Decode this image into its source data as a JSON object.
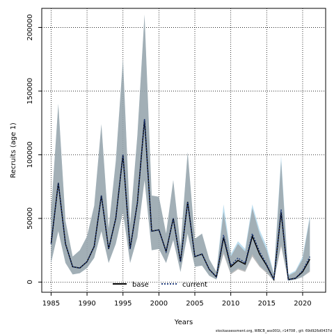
{
  "chart_data": {
    "type": "line",
    "xlabel": "Years",
    "ylabel": "Recruits (age 1)",
    "xlim": [
      1983.7,
      2023.2
    ],
    "ylim": [
      -8000,
      215000
    ],
    "x_ticks": [
      1985,
      1990,
      1995,
      2000,
      2005,
      2010,
      2015,
      2020
    ],
    "y_ticks": [
      0,
      50000,
      100000,
      150000,
      200000
    ],
    "grid": true,
    "legend_position": "bottom-center",
    "x": [
      1985,
      1986,
      1987,
      1988,
      1989,
      1990,
      1991,
      1992,
      1993,
      1994,
      1995,
      1996,
      1997,
      1998,
      1999,
      2000,
      2001,
      2002,
      2003,
      2004,
      2005,
      2006,
      2007,
      2008,
      2009,
      2010,
      2011,
      2012,
      2013,
      2014,
      2015,
      2016,
      2017,
      2018,
      2019,
      2020,
      2021
    ],
    "series": [
      {
        "name": "base",
        "color": "#000000",
        "line_style": "solid",
        "fill_color": "#8f8f8f",
        "values": [
          30000,
          78000,
          30000,
          12000,
          11000,
          16000,
          28000,
          68000,
          26000,
          50000,
          100000,
          26000,
          62000,
          128000,
          40000,
          41000,
          24000,
          50000,
          16000,
          63000,
          20000,
          22000,
          10000,
          4000,
          35000,
          12000,
          17000,
          14000,
          36000,
          22000,
          13000,
          2000,
          55000,
          2000,
          3000,
          8000,
          18000
        ],
        "lower": [
          15000,
          40000,
          15000,
          6000,
          7000,
          11000,
          19000,
          40000,
          15000,
          30000,
          55000,
          15000,
          35000,
          80000,
          25000,
          26000,
          15000,
          33000,
          8000,
          38000,
          12000,
          13000,
          5000,
          2000,
          22000,
          6000,
          10000,
          8000,
          20000,
          12000,
          7000,
          1000,
          28000,
          1000,
          2000,
          4000,
          8000
        ],
        "upper": [
          55000,
          140000,
          48000,
          20000,
          25000,
          36000,
          60000,
          124000,
          42000,
          95000,
          175000,
          45000,
          115000,
          210000,
          68000,
          67000,
          38000,
          80000,
          28000,
          102000,
          34000,
          38000,
          18000,
          8000,
          55000,
          20000,
          30000,
          24000,
          58000,
          38000,
          25000,
          6000,
          95000,
          5000,
          8000,
          18000,
          50000
        ]
      },
      {
        "name": "current",
        "color": "#1f3a7a",
        "line_style": "dotted",
        "fill_color": "#a7d3ea",
        "values": [
          30000,
          78000,
          30000,
          12000,
          11000,
          16000,
          28000,
          68000,
          26000,
          50000,
          100000,
          26000,
          62000,
          128000,
          40000,
          41000,
          24000,
          50000,
          16000,
          63000,
          20000,
          22000,
          10000,
          4000,
          37000,
          13000,
          19000,
          15000,
          38000,
          24000,
          14000,
          2000,
          57000,
          2000,
          3000,
          9000,
          20000
        ],
        "lower": [
          15000,
          40000,
          15000,
          6000,
          7000,
          11000,
          19000,
          40000,
          15000,
          30000,
          55000,
          15000,
          35000,
          80000,
          25000,
          26000,
          15000,
          33000,
          8000,
          38000,
          12000,
          13000,
          5000,
          2000,
          24000,
          7000,
          11000,
          9000,
          22000,
          13000,
          8000,
          1000,
          30000,
          1000,
          2000,
          4000,
          9000
        ],
        "upper": [
          55000,
          140000,
          48000,
          20000,
          25000,
          36000,
          60000,
          124000,
          42000,
          95000,
          175000,
          45000,
          115000,
          210000,
          68000,
          67000,
          38000,
          80000,
          28000,
          102000,
          34000,
          38000,
          18000,
          8000,
          61000,
          22000,
          32000,
          26000,
          61000,
          41000,
          28000,
          7000,
          99000,
          6000,
          9000,
          20000,
          52000
        ]
      }
    ]
  },
  "footer_text": "stockassessment.org, WBCB_ass001t, r14708 , git: 69d926d0437d"
}
